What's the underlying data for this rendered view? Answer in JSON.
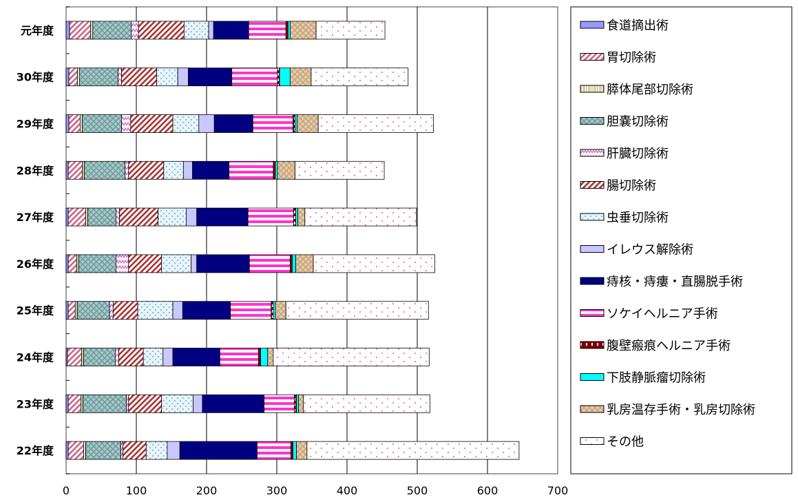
{
  "chart_data": {
    "type": "bar",
    "orientation": "horizontal",
    "stacked": true,
    "categories": [
      "元年度",
      "30年度",
      "29年度",
      "28年度",
      "27年度",
      "26年度",
      "25年度",
      "24年度",
      "23年度",
      "22年度"
    ],
    "xlim": [
      0,
      700
    ],
    "xticks": [
      0,
      100,
      200,
      300,
      400,
      500,
      600,
      700
    ],
    "grid": true,
    "legend_position": "right",
    "series": [
      {
        "name": "食道摘出術",
        "color": "#9999ff",
        "pattern": "solid",
        "values": [
          5,
          4,
          4,
          3,
          3,
          3,
          3,
          2,
          3,
          3
        ]
      },
      {
        "name": "胃切除術",
        "color": "#cc6688",
        "pattern": "diag",
        "values": [
          30,
          12,
          16,
          20,
          25,
          12,
          10,
          20,
          18,
          22
        ]
      },
      {
        "name": "膵体尾部切除術",
        "color": "#c8c890",
        "pattern": "vstripe",
        "values": [
          3,
          3,
          3,
          3,
          3,
          3,
          3,
          3,
          3,
          3
        ]
      },
      {
        "name": "胆嚢切除術",
        "color": "#669999",
        "pattern": "cross",
        "values": [
          55,
          55,
          56,
          58,
          40,
          53,
          46,
          45,
          62,
          50
        ]
      },
      {
        "name": "肝臓切除術",
        "color": "#cc66cc",
        "pattern": "zigzag",
        "values": [
          10,
          5,
          13,
          5,
          5,
          18,
          5,
          5,
          3,
          3
        ]
      },
      {
        "name": "腸切除術",
        "color": "#aa3333",
        "pattern": "diag",
        "values": [
          65,
          50,
          60,
          50,
          55,
          47,
          35,
          35,
          47,
          33
        ]
      },
      {
        "name": "虫垂切除術",
        "color": "#66aacc",
        "pattern": "dots",
        "values": [
          35,
          30,
          37,
          28,
          40,
          42,
          50,
          28,
          45,
          30
        ]
      },
      {
        "name": "イレウス解除術",
        "color": "#c8c8ff",
        "pattern": "solid",
        "values": [
          7,
          15,
          22,
          13,
          15,
          8,
          14,
          14,
          13,
          18
        ]
      },
      {
        "name": "痔核・痔瘻・直腸脱手術",
        "color": "#000080",
        "pattern": "solid",
        "values": [
          50,
          62,
          55,
          52,
          73,
          75,
          68,
          67,
          88,
          110
        ]
      },
      {
        "name": "ソケイヘルニア手術",
        "color": "#ff33cc",
        "pattern": "hstripe",
        "values": [
          53,
          65,
          57,
          63,
          65,
          58,
          58,
          55,
          43,
          48
        ]
      },
      {
        "name": "腹壁瘢痕ヘルニア手術",
        "color": "#800000",
        "pattern": "dashed",
        "values": [
          3,
          3,
          3,
          3,
          3,
          3,
          3,
          3,
          3,
          3
        ]
      },
      {
        "name": "下肢静脈瘤切除術",
        "color": "#00ffff",
        "pattern": "solid",
        "values": [
          3,
          15,
          3,
          3,
          3,
          5,
          3,
          10,
          3,
          5
        ]
      },
      {
        "name": "乳房温存手術・乳房切除術",
        "color": "#c8a070",
        "pattern": "cross",
        "values": [
          37,
          30,
          30,
          25,
          10,
          25,
          15,
          8,
          7,
          15
        ]
      },
      {
        "name": "その他",
        "color": "#cc3366",
        "pattern": "sparse",
        "values": [
          98,
          138,
          164,
          127,
          159,
          173,
          203,
          222,
          180,
          302
        ]
      }
    ]
  }
}
